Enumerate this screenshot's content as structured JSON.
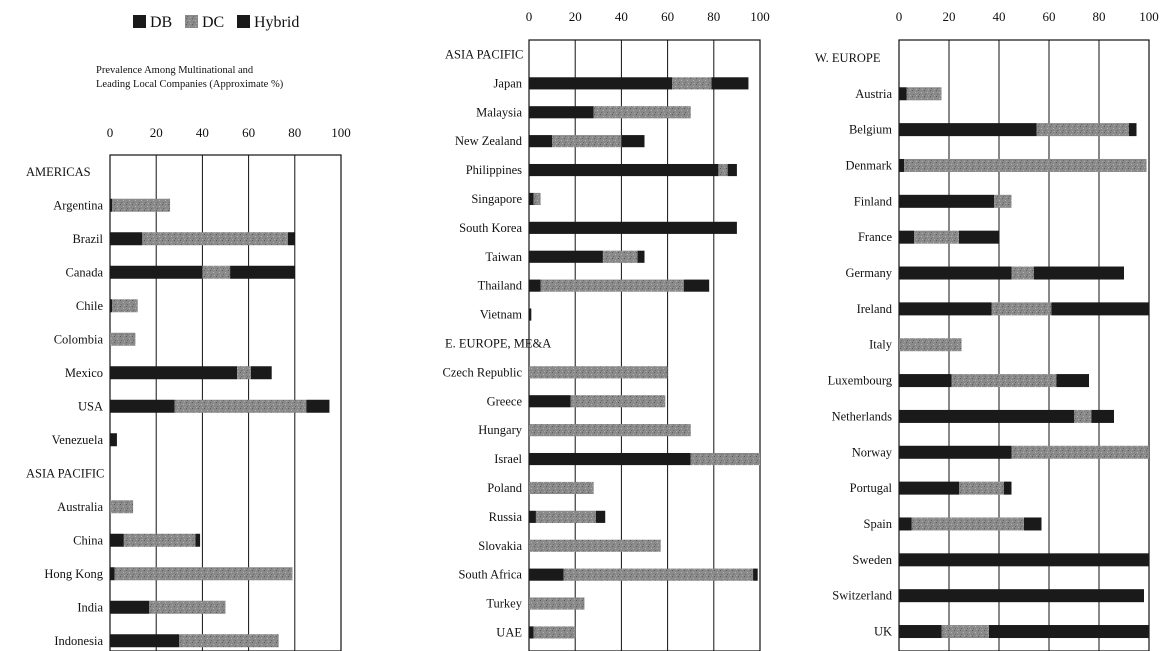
{
  "legend": [
    {
      "name": "DB",
      "color": "#1a1a1a"
    },
    {
      "name": "DC",
      "color": "#8c8c8c"
    },
    {
      "name": "Hybrid",
      "color": "#1a1a1a"
    }
  ],
  "subtitle_line1": "Prevalence Among Multinational and",
  "subtitle_line2": "Leading Local Companies (Approximate %)",
  "chart_data": [
    {
      "type": "bar",
      "stacked": true,
      "orientation": "horizontal",
      "xlim": [
        0,
        100
      ],
      "xticks": [
        0,
        20,
        40,
        60,
        80,
        100
      ],
      "series_names": [
        "DB",
        "DC",
        "Hybrid"
      ],
      "rows": [
        {
          "label": "AMERICAS",
          "header": true
        },
        {
          "label": "Argentina",
          "values": [
            1,
            25,
            0
          ]
        },
        {
          "label": "Brazil",
          "values": [
            14,
            63,
            3
          ]
        },
        {
          "label": "Canada",
          "values": [
            40,
            12,
            28
          ]
        },
        {
          "label": "Chile",
          "values": [
            1,
            11,
            0
          ]
        },
        {
          "label": "Colombia",
          "values": [
            0,
            11,
            0
          ]
        },
        {
          "label": "Mexico",
          "values": [
            55,
            6,
            9
          ]
        },
        {
          "label": "USA",
          "values": [
            28,
            57,
            10
          ]
        },
        {
          "label": "Venezuela",
          "values": [
            3,
            0,
            0
          ]
        },
        {
          "label": "ASIA PACIFIC",
          "header": true
        },
        {
          "label": "Australia",
          "values": [
            0,
            10,
            0
          ]
        },
        {
          "label": "China",
          "values": [
            6,
            31,
            2
          ]
        },
        {
          "label": "Hong Kong",
          "values": [
            2,
            77,
            0
          ]
        },
        {
          "label": "India",
          "values": [
            17,
            33,
            0
          ]
        },
        {
          "label": "Indonesia",
          "values": [
            30,
            43,
            0
          ]
        }
      ]
    },
    {
      "type": "bar",
      "stacked": true,
      "orientation": "horizontal",
      "xlim": [
        0,
        100
      ],
      "xticks": [
        0,
        20,
        40,
        60,
        80,
        100
      ],
      "series_names": [
        "DB",
        "DC",
        "Hybrid"
      ],
      "rows": [
        {
          "label": "ASIA PACIFIC",
          "header": true
        },
        {
          "label": "Japan",
          "values": [
            62,
            17,
            16
          ]
        },
        {
          "label": "Malaysia",
          "values": [
            28,
            42,
            0
          ]
        },
        {
          "label": "New Zealand",
          "values": [
            10,
            30,
            10
          ]
        },
        {
          "label": "Philippines",
          "values": [
            82,
            4,
            4
          ]
        },
        {
          "label": "Singapore",
          "values": [
            2,
            3,
            0
          ]
        },
        {
          "label": "South Korea",
          "values": [
            90,
            0,
            0
          ]
        },
        {
          "label": "Taiwan",
          "values": [
            32,
            15,
            3
          ]
        },
        {
          "label": "Thailand",
          "values": [
            5,
            62,
            11
          ]
        },
        {
          "label": "Vietnam",
          "values": [
            1,
            0,
            0
          ]
        },
        {
          "label": "E. EUROPE, ME&A",
          "header": true
        },
        {
          "label": "Czech Republic",
          "values": [
            0,
            60,
            0
          ]
        },
        {
          "label": "Greece",
          "values": [
            18,
            41,
            0
          ]
        },
        {
          "label": "Hungary",
          "values": [
            0,
            70,
            0
          ]
        },
        {
          "label": "Israel",
          "values": [
            70,
            30,
            0
          ]
        },
        {
          "label": "Poland",
          "values": [
            0,
            28,
            0
          ]
        },
        {
          "label": "Russia",
          "values": [
            3,
            26,
            4
          ]
        },
        {
          "label": "Slovakia",
          "values": [
            0,
            57,
            0
          ]
        },
        {
          "label": "South Africa",
          "values": [
            15,
            82,
            2
          ]
        },
        {
          "label": "Turkey",
          "values": [
            0,
            24,
            0
          ]
        },
        {
          "label": "UAE",
          "values": [
            2,
            18,
            0
          ]
        }
      ]
    },
    {
      "type": "bar",
      "stacked": true,
      "orientation": "horizontal",
      "xlim": [
        0,
        100
      ],
      "xticks": [
        0,
        20,
        40,
        60,
        80,
        100
      ],
      "series_names": [
        "DB",
        "DC",
        "Hybrid"
      ],
      "rows": [
        {
          "label": "W. EUROPE",
          "header": true
        },
        {
          "label": "Austria",
          "values": [
            3,
            14,
            0
          ]
        },
        {
          "label": "Belgium",
          "values": [
            55,
            37,
            3
          ]
        },
        {
          "label": "Denmark",
          "values": [
            2,
            97,
            0
          ]
        },
        {
          "label": "Finland",
          "values": [
            38,
            7,
            0
          ]
        },
        {
          "label": "France",
          "values": [
            6,
            18,
            16
          ]
        },
        {
          "label": "Germany",
          "values": [
            45,
            9,
            36
          ]
        },
        {
          "label": "Ireland",
          "values": [
            37,
            24,
            39
          ]
        },
        {
          "label": "Italy",
          "values": [
            0,
            25,
            0
          ]
        },
        {
          "label": "Luxembourg",
          "values": [
            21,
            42,
            13
          ]
        },
        {
          "label": "Netherlands",
          "values": [
            70,
            7,
            9
          ]
        },
        {
          "label": "Norway",
          "values": [
            45,
            55,
            0
          ]
        },
        {
          "label": "Portugal",
          "values": [
            24,
            18,
            3
          ]
        },
        {
          "label": "Spain",
          "values": [
            5,
            45,
            7
          ]
        },
        {
          "label": "Sweden",
          "values": [
            100,
            0,
            0
          ]
        },
        {
          "label": "Switzerland",
          "values": [
            98,
            0,
            0
          ]
        },
        {
          "label": "UK",
          "values": [
            17,
            19,
            64
          ]
        }
      ]
    }
  ]
}
